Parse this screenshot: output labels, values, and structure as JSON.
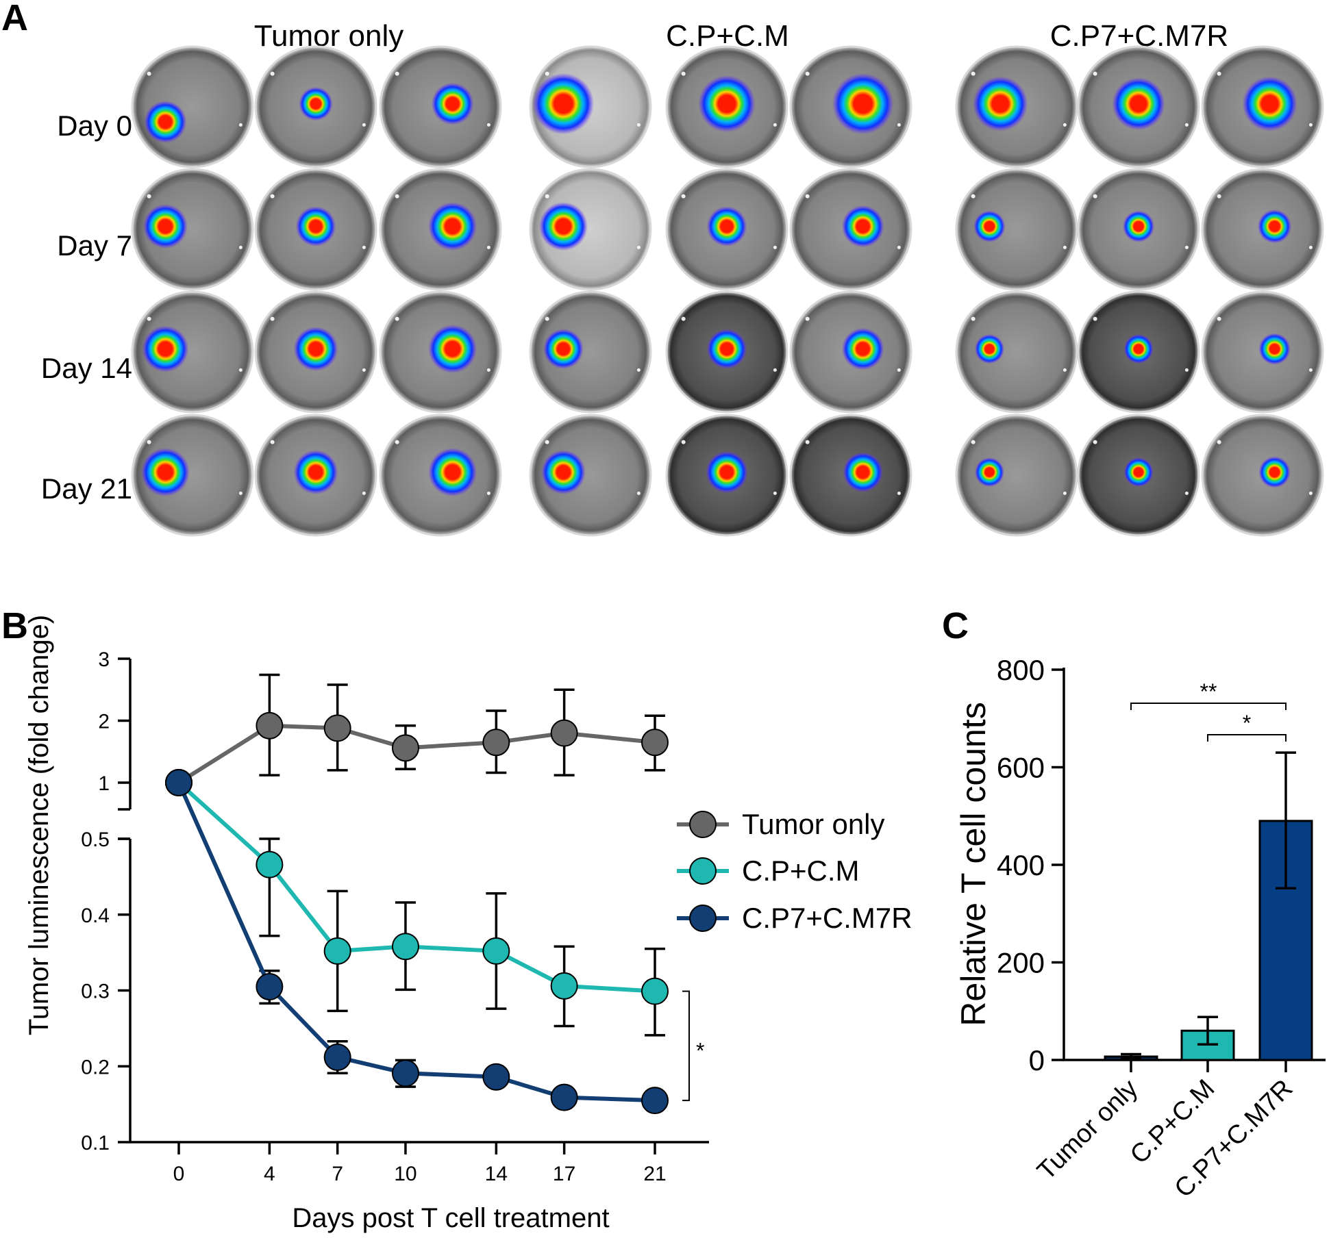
{
  "panels": {
    "a": {
      "letter": "A",
      "groups": [
        "Tumor only",
        "C.P+C.M",
        "C.P7+C.M7R"
      ],
      "days": [
        "Day 0",
        "Day 7",
        "Day 14",
        "Day 21"
      ],
      "signal": [
        [
          [
            0.45,
            0.55
          ],
          [
            0.55,
            0.35
          ],
          [
            0.8,
            0.55
          ],
          [
            0.45,
            1.0
          ],
          [
            0.8,
            0.9
          ],
          [
            0.9,
            1.0
          ],
          [
            0.65,
            0.85
          ],
          [
            0.7,
            0.8
          ],
          [
            0.75,
            0.85
          ]
        ],
        [
          [
            0.55,
            0.6
          ],
          [
            0.55,
            0.5
          ],
          [
            0.75,
            0.7
          ],
          [
            0.35,
            0.7
          ],
          [
            0.35,
            0.5
          ],
          [
            0.45,
            0.55
          ],
          [
            0.25,
            0.3
          ],
          [
            0.25,
            0.3
          ],
          [
            0.3,
            0.35
          ]
        ],
        [
          [
            0.55,
            0.65
          ],
          [
            0.55,
            0.6
          ],
          [
            0.8,
            0.7
          ],
          [
            0.35,
            0.5
          ],
          [
            0.4,
            0.5
          ],
          [
            0.45,
            0.55
          ],
          [
            0.2,
            0.25
          ],
          [
            0.2,
            0.25
          ],
          [
            0.25,
            0.3
          ]
        ],
        [
          [
            0.75,
            0.7
          ],
          [
            0.7,
            0.6
          ],
          [
            0.85,
            0.7
          ],
          [
            0.45,
            0.6
          ],
          [
            0.45,
            0.55
          ],
          [
            0.45,
            0.5
          ],
          [
            0.2,
            0.25
          ],
          [
            0.2,
            0.25
          ],
          [
            0.25,
            0.3
          ]
        ]
      ]
    },
    "b": {
      "letter": "B"
    },
    "c": {
      "letter": "C"
    }
  },
  "chart_data": [
    {
      "type": "line",
      "panel": "B",
      "xlabel": "Days post T cell treatment",
      "ylabel": "Tumor luminescence (fold change)",
      "x": [
        0,
        4,
        7,
        10,
        14,
        17,
        21
      ],
      "x_tick_labels": [
        "0",
        "4",
        "7",
        "10",
        "14",
        "17",
        "21"
      ],
      "y_axis_broken": true,
      "upper_segment": {
        "ylim": [
          0.6,
          3
        ],
        "ticks": [
          "1",
          "2",
          "3"
        ],
        "tick_values": [
          1,
          2,
          3
        ]
      },
      "lower_segment": {
        "ylim": [
          0.1,
          0.5
        ],
        "ticks": [
          "0.1",
          "0.2",
          "0.3",
          "0.4",
          "0.5"
        ],
        "tick_values": [
          0.1,
          0.2,
          0.3,
          0.4,
          0.5
        ]
      },
      "series": [
        {
          "name": "Tumor only",
          "color": "#666666",
          "values": [
            1.0,
            1.92,
            1.88,
            1.56,
            1.65,
            1.8,
            1.65
          ],
          "err_high": [
            1.0,
            2.74,
            2.58,
            1.92,
            2.16,
            2.5,
            2.08
          ],
          "err_low": [
            1.0,
            1.12,
            1.2,
            1.22,
            1.16,
            1.12,
            1.2
          ]
        },
        {
          "name": "C.P+C.M",
          "color": "#1fb8b0",
          "values": [
            1.0,
            0.466,
            0.352,
            0.358,
            0.352,
            0.306,
            0.299
          ],
          "err_high": [
            1.0,
            0.5,
            0.431,
            0.416,
            0.428,
            0.358,
            0.355
          ],
          "err_low": [
            1.0,
            0.372,
            0.273,
            0.301,
            0.276,
            0.253,
            0.241
          ]
        },
        {
          "name": "C.P7+C.M7R",
          "color": "#123e73",
          "values": [
            1.0,
            0.305,
            0.212,
            0.191,
            0.186,
            0.159,
            0.155
          ],
          "err_high": [
            1.0,
            0.326,
            0.233,
            0.208,
            0.186,
            0.159,
            0.155
          ],
          "err_low": [
            1.0,
            0.283,
            0.191,
            0.173,
            0.186,
            0.159,
            0.155
          ]
        }
      ],
      "significance": [
        {
          "label": "*",
          "between": [
            "C.P+C.M",
            "C.P7+C.M7R"
          ],
          "at_x": 21
        }
      ]
    },
    {
      "type": "bar",
      "panel": "C",
      "ylabel": "Relative T cell counts",
      "categories": [
        "Tumor only",
        "C.P+C.M",
        "C.P7+C.M7R"
      ],
      "values": [
        7,
        60,
        490
      ],
      "err_high": [
        12,
        88,
        630
      ],
      "err_low": [
        3,
        32,
        352
      ],
      "colors": [
        "#0e2a52",
        "#1fb8b0",
        "#053e82"
      ],
      "ylim": [
        0,
        800
      ],
      "y_ticks": [
        "0",
        "200",
        "400",
        "600",
        "800"
      ],
      "y_tick_values": [
        0,
        200,
        400,
        600,
        800
      ],
      "significance": [
        {
          "label": "**",
          "between": [
            "Tumor only",
            "C.P7+C.M7R"
          ]
        },
        {
          "label": "*",
          "between": [
            "C.P+C.M",
            "C.P7+C.M7R"
          ]
        }
      ]
    }
  ]
}
